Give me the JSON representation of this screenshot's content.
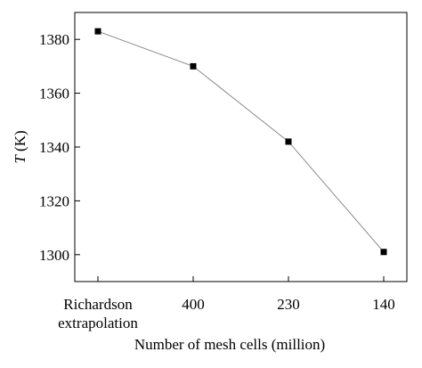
{
  "chart_data": {
    "type": "line",
    "categories": [
      "Richardson extrapolation",
      "400",
      "230",
      "140"
    ],
    "category_label_lines": [
      [
        "Richardson",
        "extrapolation"
      ],
      [
        "400"
      ],
      [
        "230"
      ],
      [
        "140"
      ]
    ],
    "series": [
      {
        "values": [
          1383,
          1370,
          1342,
          1301
        ]
      }
    ],
    "xlabel": "Number of mesh cells (million)",
    "ylabel_var": "T",
    "ylabel_unit": " (K)",
    "ylim": [
      1290,
      1390
    ],
    "yticks": [
      1300,
      1320,
      1340,
      1360,
      1380
    ],
    "grid": false,
    "legend": "none",
    "line_color": "#8a8a8a",
    "marker_color": "#000000"
  }
}
